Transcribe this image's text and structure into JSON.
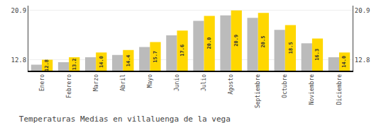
{
  "chart_data": {
    "type": "bar",
    "title": "Temperaturas Medias en villaluenga de la vega",
    "categories": [
      "Enero",
      "Febrero",
      "Marzo",
      "Abril",
      "Mayo",
      "Junio",
      "Julio",
      "Agosto",
      "Septiembre",
      "Octubre",
      "Noviembre",
      "Diciembre"
    ],
    "series": [
      {
        "color": "#BBBBBB",
        "values": [
          12.0,
          12.4,
          13.2,
          13.6,
          14.9,
          16.8,
          19.2,
          20.1,
          19.7,
          17.7,
          15.5,
          13.2
        ]
      },
      {
        "color": "#FFD700",
        "values": [
          12.8,
          13.2,
          14.0,
          14.4,
          15.7,
          17.6,
          20.0,
          20.9,
          20.5,
          18.5,
          16.3,
          14.0
        ],
        "data_labels": true,
        "value_labels": [
          "12.8",
          "13.2",
          "14.0",
          "14.4",
          "15.7",
          "17.6",
          "20.0",
          "20.9",
          "20.5",
          "18.5",
          "16.3",
          "14.0"
        ]
      }
    ],
    "ylim": [
      11.0,
      21.692
    ],
    "yticks": [
      12.8,
      20.9
    ],
    "y2lim": [
      11.0,
      21.692
    ],
    "y2ticks": [
      12.8,
      20.9
    ],
    "grid": true
  }
}
